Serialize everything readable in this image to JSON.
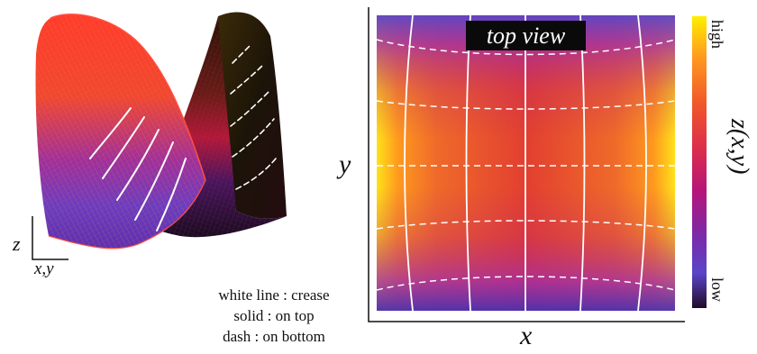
{
  "surface_panel": {
    "z_axis_label": "z",
    "xy_axis_label": "x,y"
  },
  "legend": {
    "line1": "white line : crease",
    "line2": "solid : on top",
    "line3": "dash : on bottom"
  },
  "top_panel": {
    "title": "top view",
    "x_label": "x",
    "y_label": "y"
  },
  "colorbar": {
    "high_label": "high",
    "low_label": "low",
    "quantity_label": "z(x,y)",
    "colors": [
      "#ffee00",
      "#ff9a1e",
      "#f0572a",
      "#dd2e4a",
      "#b5157a",
      "#7a2aa8",
      "#5a45c8",
      "#220a28"
    ]
  },
  "colors": {
    "crease_line": "#ffffff",
    "surface_mesh": "#ff5040"
  }
}
